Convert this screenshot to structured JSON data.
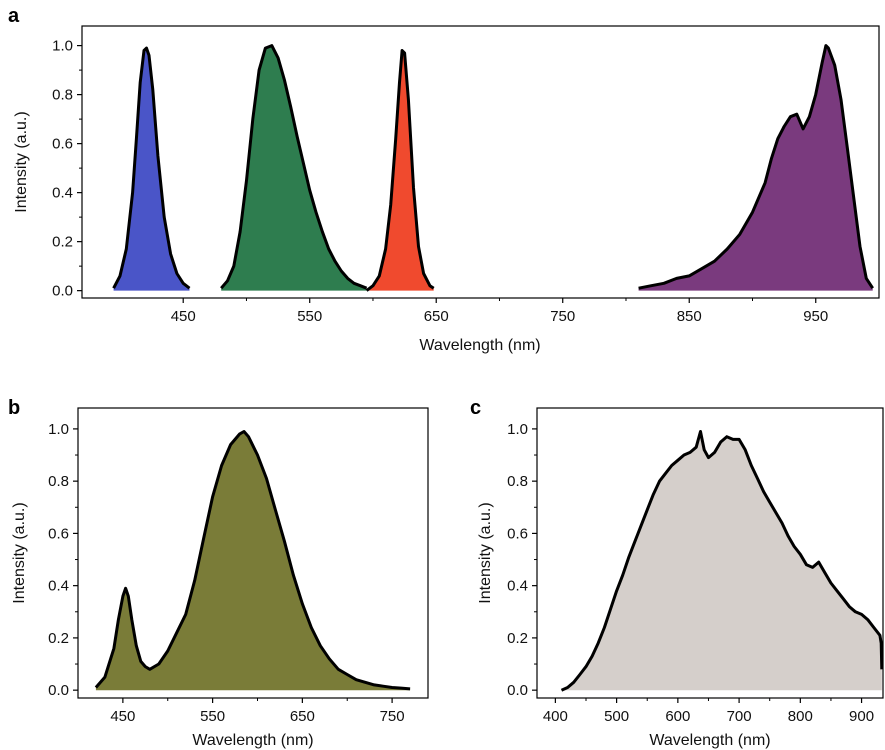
{
  "panels": [
    {
      "label": "a",
      "xlabel": "Wavelength (nm)",
      "ylabel": "Intensity (a.u.)",
      "xticks": [
        "450",
        "550",
        "650",
        "750",
        "850",
        "950"
      ],
      "yticks": [
        "0.0",
        "0.2",
        "0.4",
        "0.6",
        "0.8",
        "1.0"
      ]
    },
    {
      "label": "b",
      "xlabel": "Wavelength (nm)",
      "ylabel": "Intensity (a.u.)",
      "xticks": [
        "450",
        "550",
        "650",
        "750"
      ],
      "yticks": [
        "0.0",
        "0.2",
        "0.4",
        "0.6",
        "0.8",
        "1.0"
      ]
    },
    {
      "label": "c",
      "xlabel": "Wavelength (nm)",
      "ylabel": "Intensity (a.u.)",
      "xticks": [
        "400",
        "500",
        "600",
        "700",
        "800",
        "900"
      ],
      "yticks": [
        "0.0",
        "0.2",
        "0.4",
        "0.6",
        "0.8",
        "1.0"
      ]
    }
  ],
  "chart_data": [
    {
      "type": "area",
      "xlabel": "Wavelength (nm)",
      "ylabel": "Intensity (a.u.)",
      "xlim": [
        370,
        1000
      ],
      "ylim": [
        -0.03,
        1.08
      ],
      "grid": false,
      "series": [
        {
          "color": "#4a55c8",
          "x": [
            395,
            400,
            405,
            410,
            413,
            416,
            419,
            421,
            423,
            426,
            430,
            435,
            440,
            445,
            450,
            455
          ],
          "values": [
            0.01,
            0.06,
            0.17,
            0.4,
            0.62,
            0.85,
            0.98,
            0.99,
            0.96,
            0.82,
            0.55,
            0.3,
            0.15,
            0.07,
            0.03,
            0.01
          ]
        },
        {
          "color": "#2e7d4f",
          "x": [
            480,
            485,
            490,
            495,
            500,
            505,
            510,
            515,
            520,
            525,
            530,
            535,
            540,
            545,
            550,
            555,
            560,
            565,
            570,
            575,
            580,
            585,
            590,
            595
          ],
          "values": [
            0.01,
            0.04,
            0.1,
            0.24,
            0.45,
            0.7,
            0.9,
            0.99,
            1.0,
            0.95,
            0.86,
            0.75,
            0.63,
            0.52,
            0.41,
            0.32,
            0.24,
            0.17,
            0.12,
            0.08,
            0.05,
            0.03,
            0.02,
            0.01
          ]
        },
        {
          "color": "#f04a2e",
          "x": [
            595,
            600,
            605,
            610,
            614,
            618,
            621,
            623,
            625,
            628,
            632,
            636,
            640,
            645,
            648
          ],
          "values": [
            0.0,
            0.02,
            0.06,
            0.17,
            0.35,
            0.62,
            0.85,
            0.98,
            0.97,
            0.78,
            0.42,
            0.18,
            0.07,
            0.02,
            0.01
          ]
        },
        {
          "color": "#7a3a7e",
          "x": [
            810,
            820,
            830,
            840,
            850,
            860,
            870,
            880,
            890,
            900,
            910,
            915,
            920,
            925,
            930,
            935,
            940,
            945,
            950,
            955,
            958,
            960,
            965,
            970,
            975,
            980,
            985,
            990,
            995
          ],
          "values": [
            0.01,
            0.02,
            0.03,
            0.05,
            0.06,
            0.09,
            0.12,
            0.17,
            0.23,
            0.32,
            0.44,
            0.54,
            0.62,
            0.67,
            0.71,
            0.72,
            0.66,
            0.71,
            0.8,
            0.93,
            1.0,
            0.99,
            0.92,
            0.78,
            0.58,
            0.38,
            0.18,
            0.05,
            0.01
          ]
        }
      ]
    },
    {
      "type": "area",
      "xlabel": "Wavelength (nm)",
      "ylabel": "Intensity (a.u.)",
      "xlim": [
        400,
        790
      ],
      "ylim": [
        -0.03,
        1.08
      ],
      "grid": false,
      "series": [
        {
          "color": "#7a7c38",
          "x": [
            420,
            430,
            440,
            445,
            450,
            453,
            456,
            460,
            465,
            470,
            475,
            480,
            490,
            500,
            510,
            520,
            530,
            540,
            550,
            560,
            570,
            580,
            585,
            590,
            600,
            610,
            620,
            630,
            640,
            650,
            660,
            670,
            680,
            690,
            700,
            710,
            720,
            730,
            740,
            750,
            760,
            770
          ],
          "values": [
            0.01,
            0.05,
            0.16,
            0.27,
            0.36,
            0.39,
            0.36,
            0.27,
            0.17,
            0.11,
            0.09,
            0.08,
            0.1,
            0.15,
            0.22,
            0.29,
            0.42,
            0.58,
            0.74,
            0.86,
            0.94,
            0.98,
            0.99,
            0.97,
            0.9,
            0.81,
            0.69,
            0.57,
            0.44,
            0.33,
            0.24,
            0.17,
            0.12,
            0.08,
            0.06,
            0.04,
            0.03,
            0.02,
            0.015,
            0.01,
            0.008,
            0.005
          ]
        }
      ]
    },
    {
      "type": "area",
      "xlabel": "Wavelength (nm)",
      "ylabel": "Intensity (a.u.)",
      "xlim": [
        370,
        935
      ],
      "ylim": [
        -0.03,
        1.08
      ],
      "grid": false,
      "series": [
        {
          "color": "#d5cfcb",
          "x": [
            410,
            420,
            430,
            440,
            450,
            460,
            470,
            480,
            490,
            500,
            510,
            520,
            530,
            540,
            550,
            560,
            570,
            580,
            590,
            600,
            610,
            620,
            630,
            637,
            643,
            650,
            660,
            670,
            680,
            690,
            700,
            710,
            720,
            730,
            740,
            750,
            760,
            770,
            780,
            790,
            800,
            810,
            820,
            830,
            840,
            850,
            860,
            870,
            880,
            890,
            900,
            910,
            920,
            930,
            932,
            933
          ],
          "values": [
            0.0,
            0.01,
            0.03,
            0.06,
            0.09,
            0.13,
            0.18,
            0.24,
            0.31,
            0.38,
            0.44,
            0.51,
            0.57,
            0.63,
            0.69,
            0.75,
            0.8,
            0.83,
            0.86,
            0.88,
            0.9,
            0.91,
            0.93,
            0.99,
            0.92,
            0.89,
            0.91,
            0.95,
            0.97,
            0.96,
            0.96,
            0.92,
            0.86,
            0.81,
            0.76,
            0.72,
            0.68,
            0.64,
            0.59,
            0.55,
            0.52,
            0.48,
            0.47,
            0.49,
            0.45,
            0.41,
            0.38,
            0.35,
            0.32,
            0.3,
            0.29,
            0.27,
            0.24,
            0.21,
            0.18,
            0.08
          ]
        }
      ]
    }
  ]
}
